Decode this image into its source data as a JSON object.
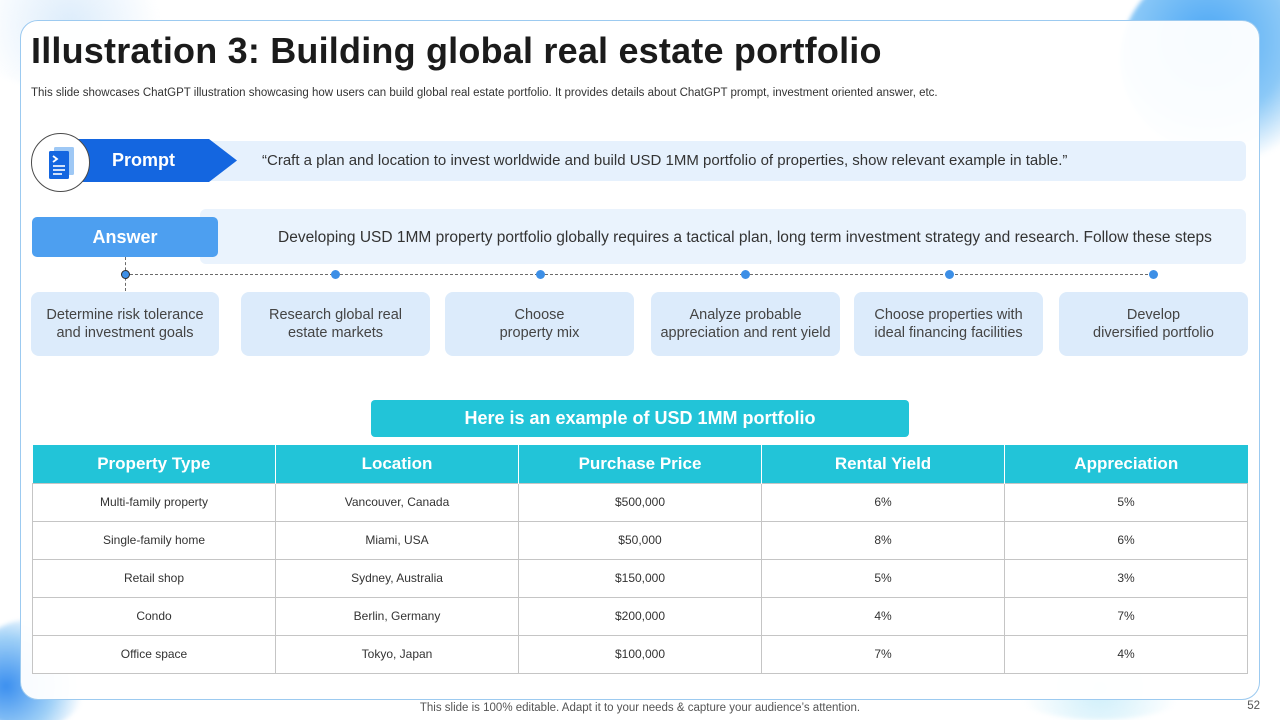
{
  "title": "Illustration 3: Building global real estate portfolio",
  "subtitle": "This slide showcases ChatGPT illustration showcasing how users can build global real estate portfolio. It provides details about ChatGPT prompt, investment oriented answer, etc.",
  "prompt": {
    "label": "Prompt",
    "icon": "document-icon",
    "text": "“Craft a plan and location to invest worldwide and build USD 1MM portfolio of properties, show relevant example in table.”"
  },
  "answer": {
    "label": "Answer",
    "text": "Developing USD 1MM property portfolio globally requires a tactical plan, long term investment strategy and research. Follow these steps"
  },
  "steps": [
    {
      "line1": "Determine risk tolerance",
      "line2": "and investment goals"
    },
    {
      "line1": "Research global real",
      "line2": "estate markets"
    },
    {
      "line1": "Choose",
      "line2": "property mix"
    },
    {
      "line1": "Analyze probable",
      "line2": "appreciation and rent yield"
    },
    {
      "line1": "Choose properties with",
      "line2": "ideal financing facilities"
    },
    {
      "line1": "Develop",
      "line2": "diversified portfolio"
    }
  ],
  "example_heading": "Here is an example of USD 1MM portfolio",
  "table": {
    "headers": [
      "Property Type",
      "Location",
      "Purchase Price",
      "Rental Yield",
      "Appreciation"
    ],
    "rows": [
      [
        "Multi-family property",
        "Vancouver, Canada",
        "$500,000",
        "6%",
        "5%"
      ],
      [
        "Single-family home",
        "Miami, USA",
        "$50,000",
        "8%",
        "6%"
      ],
      [
        "Retail shop",
        "Sydney, Australia",
        "$150,000",
        "5%",
        "3%"
      ],
      [
        "Condo",
        "Berlin, Germany",
        "$200,000",
        "4%",
        "7%"
      ],
      [
        "Office space",
        "Tokyo, Japan",
        "$100,000",
        "7%",
        "4%"
      ]
    ]
  },
  "footer": "This slide is 100% editable. Adapt it to your needs & capture your audience’s attention.",
  "page_number": "52",
  "colors": {
    "accent_blue": "#1466e0",
    "answer_blue": "#4d9ff0",
    "teal": "#22c4d8",
    "light_blue": "#dcebfb"
  }
}
